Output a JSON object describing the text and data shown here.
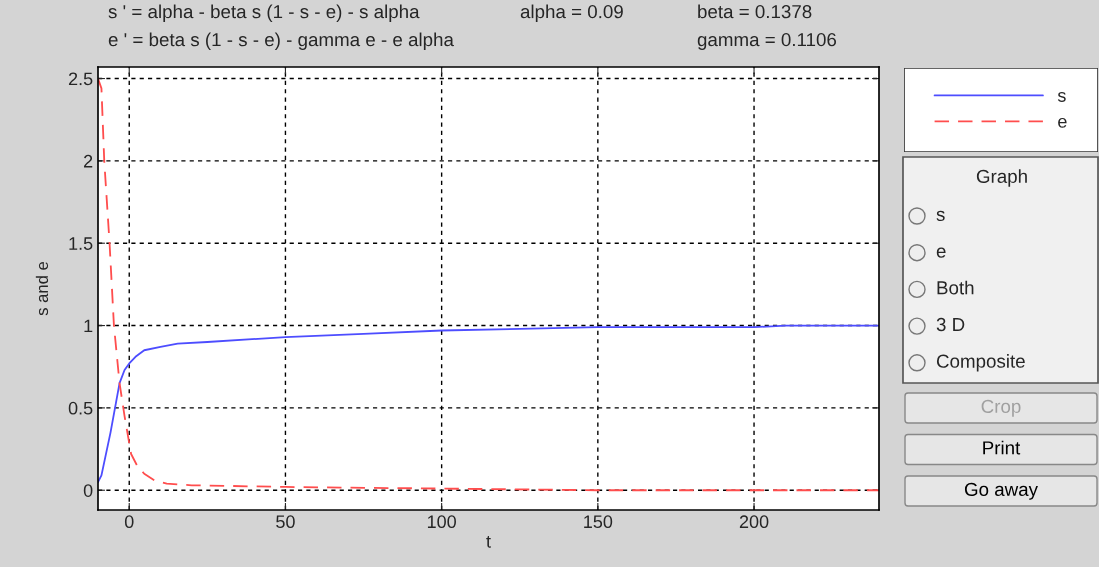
{
  "chart_data": [
    {
      "type": "line",
      "xlabel": "t",
      "ylabel": "s and e",
      "annotations": [
        "s ' = alpha - beta s (1 - s - e) - s alpha",
        "alpha = 0.09",
        "beta = 0.1378",
        "e ' = beta s (1 - s - e) - gamma e - e alpha",
        "gamma = 0.1106"
      ],
      "series": [
        {
          "name": "s",
          "color": "#4d4dff",
          "line_style": "solid",
          "x": [
            -10,
            -8.9,
            -6,
            -3.1,
            -1.5,
            0,
            2,
            4.8,
            10,
            15.5,
            25,
            50,
            75,
            100,
            125,
            150,
            175,
            200,
            210,
            240
          ],
          "values": [
            0.05,
            0.09,
            0.35,
            0.65,
            0.73,
            0.77,
            0.81,
            0.85,
            0.87,
            0.89,
            0.9,
            0.93,
            0.95,
            0.97,
            0.98,
            0.99,
            0.99,
            0.99,
            1.0,
            1.0
          ]
        },
        {
          "name": "e",
          "color": "#ff4d4d",
          "line_style": "dashed",
          "x": [
            -10,
            -8.9,
            -8,
            -6.3,
            -4.9,
            -3.1,
            -1.5,
            0.6,
            2.5,
            4.8,
            8,
            12,
            20,
            50,
            100,
            150,
            200,
            240
          ],
          "values": [
            2.5,
            2.44,
            2.0,
            1.5,
            1.0,
            0.65,
            0.45,
            0.22,
            0.15,
            0.1,
            0.06,
            0.04,
            0.03,
            0.02,
            0.01,
            0.0,
            0.0,
            0.0
          ]
        }
      ],
      "xlim": [
        -10,
        240
      ],
      "xticks": [
        0,
        50,
        100,
        150,
        200
      ],
      "ylim": [
        -0.12,
        2.57
      ],
      "yticks": [
        0,
        0.5,
        1,
        1.5,
        2,
        2.5
      ],
      "grid": true,
      "legend": "top right"
    },
    {
      "type": "other",
      "annotations": [
        "Graph",
        "s",
        "e",
        "Both",
        "3 D",
        "Composite",
        "Crop",
        "Print",
        "Go away"
      ]
    }
  ]
}
